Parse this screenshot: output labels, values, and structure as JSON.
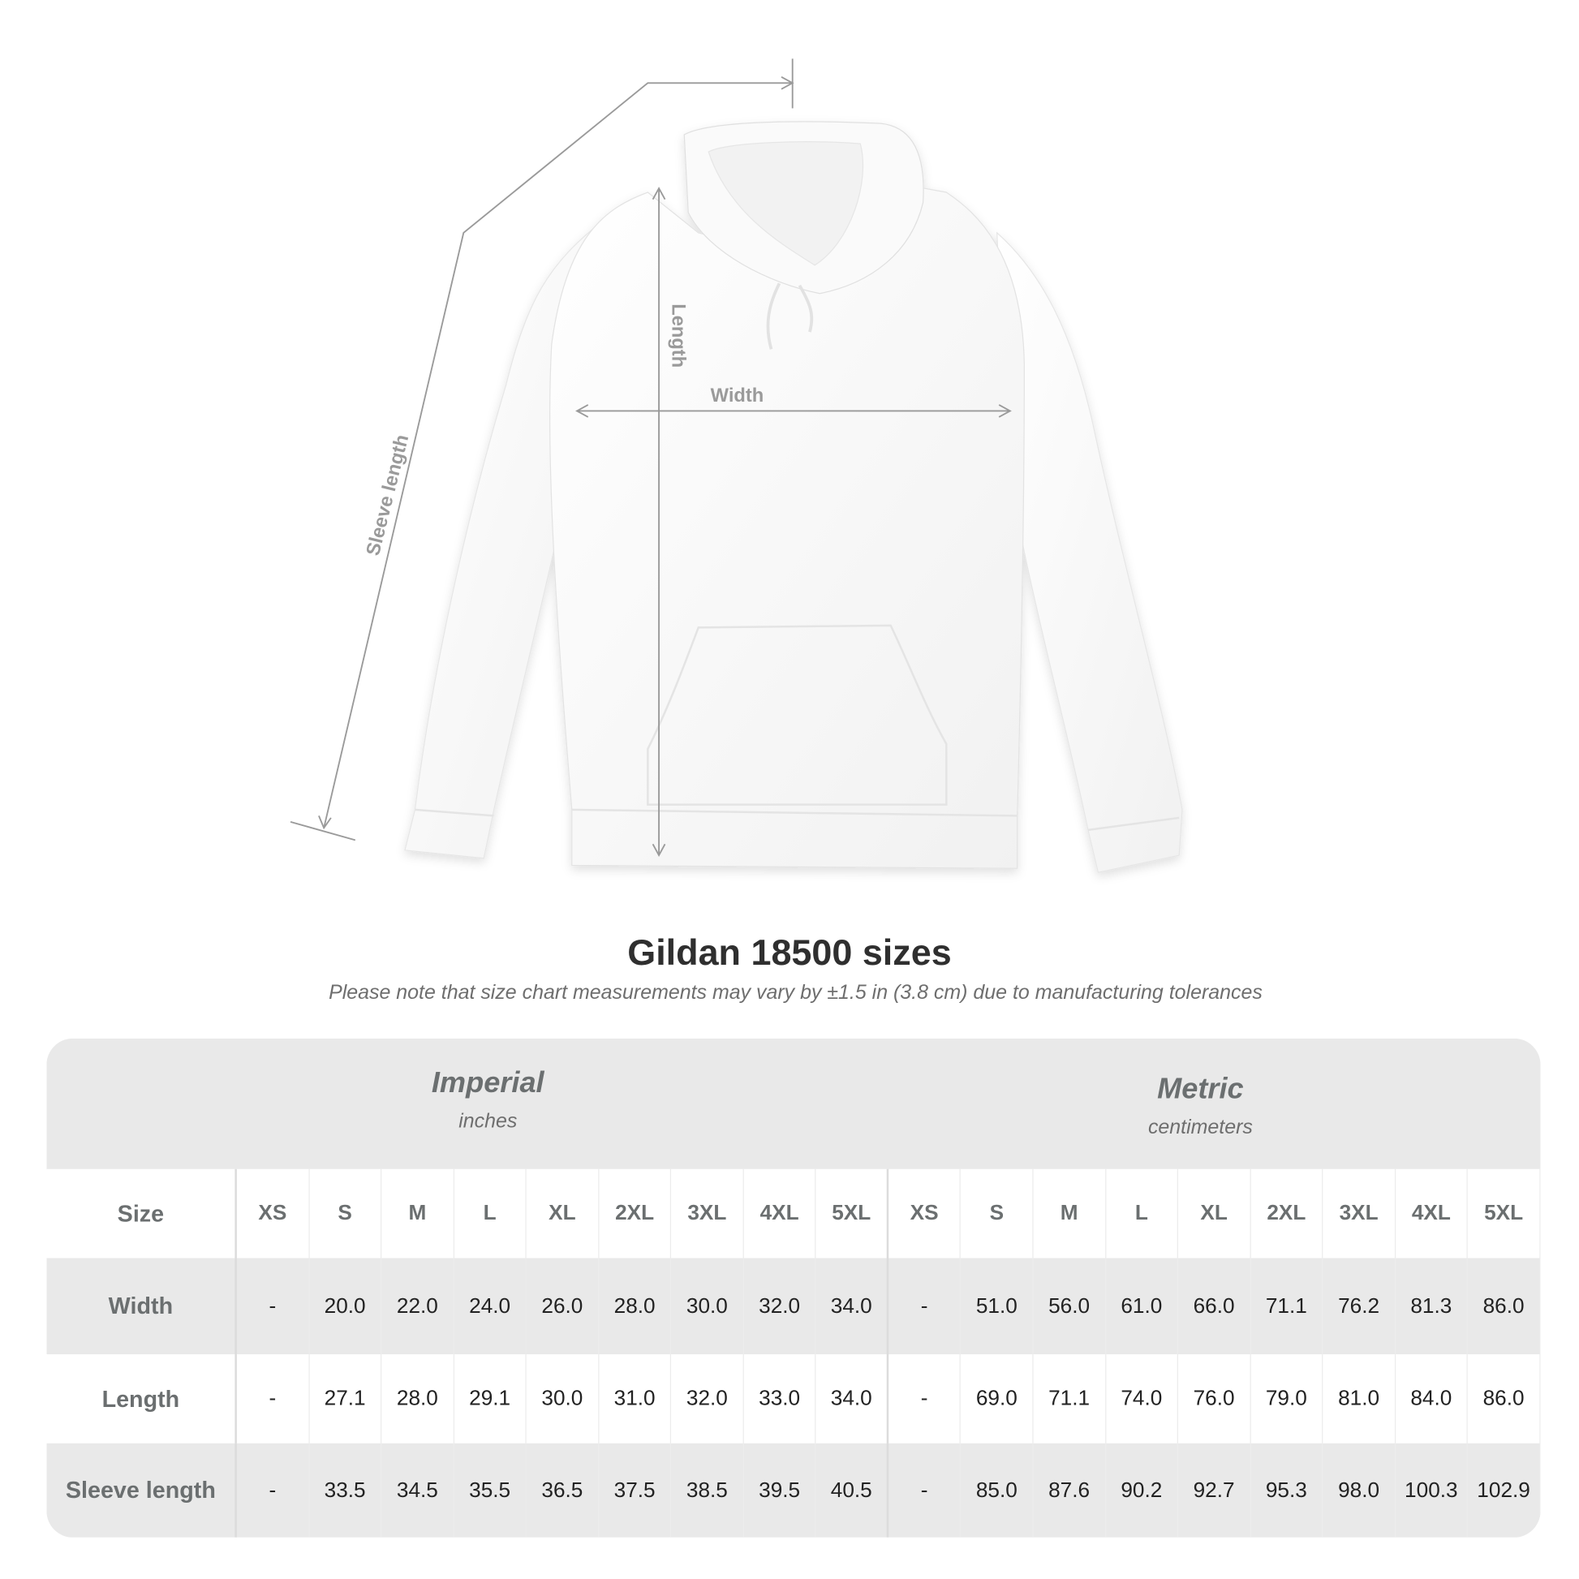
{
  "diagram": {
    "labels": {
      "length": "Length",
      "width": "Width",
      "sleeve_length": "Sleeve length"
    },
    "garment_color": "#ffffff"
  },
  "title": "Gildan 18500 sizes",
  "subtitle": "Please note that size chart measurements may vary by ±1.5 in (3.8 cm) due to manufacturing tolerances",
  "table": {
    "imperial": {
      "name": "Imperial",
      "unit": "inches"
    },
    "metric": {
      "name": "Metric",
      "unit": "centimeters"
    },
    "size_label": "Size",
    "sizes": [
      "XS",
      "S",
      "M",
      "L",
      "XL",
      "2XL",
      "3XL",
      "4XL",
      "5XL"
    ],
    "rows": [
      {
        "label": "Width",
        "imperial": [
          "-",
          "20.0",
          "22.0",
          "24.0",
          "26.0",
          "28.0",
          "30.0",
          "32.0",
          "34.0"
        ],
        "metric": [
          "-",
          "51.0",
          "56.0",
          "61.0",
          "66.0",
          "71.1",
          "76.2",
          "81.3",
          "86.0"
        ]
      },
      {
        "label": "Length",
        "imperial": [
          "-",
          "27.1",
          "28.0",
          "29.1",
          "30.0",
          "31.0",
          "32.0",
          "33.0",
          "34.0"
        ],
        "metric": [
          "-",
          "69.0",
          "71.1",
          "74.0",
          "76.0",
          "79.0",
          "81.0",
          "84.0",
          "86.0"
        ]
      },
      {
        "label": "Sleeve length",
        "imperial": [
          "-",
          "33.5",
          "34.5",
          "35.5",
          "36.5",
          "37.5",
          "38.5",
          "39.5",
          "40.5"
        ],
        "metric": [
          "-",
          "85.0",
          "87.6",
          "90.2",
          "92.7",
          "95.3",
          "98.0",
          "100.3",
          "102.9"
        ]
      }
    ]
  }
}
